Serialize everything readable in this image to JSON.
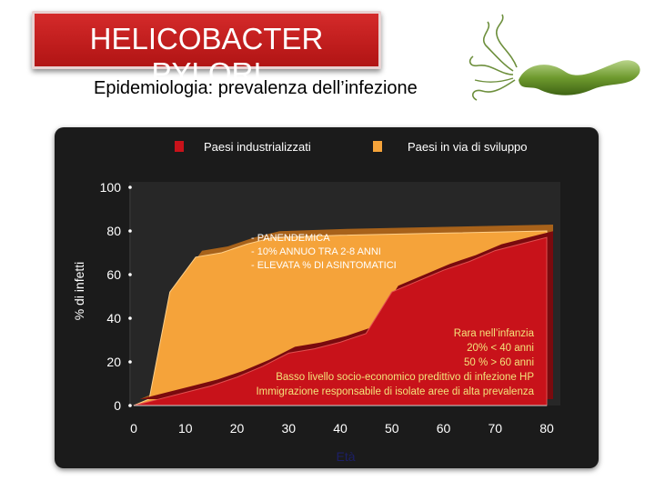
{
  "header": {
    "title": "HELICOBACTER PYLORI",
    "subtitle": "Epidemiologia: prevalenza dell’infezione"
  },
  "colors": {
    "title_bg": "#c41e1e",
    "industrialized": "#c8121a",
    "developing": "#f5a33a",
    "panel_bg": "#1b1b1b",
    "plot_bg": "#272727"
  },
  "chart_data": {
    "type": "area",
    "xlabel": "Età",
    "ylabel": "% di infetti",
    "xlim": [
      0,
      80
    ],
    "ylim": [
      0,
      100
    ],
    "x_ticks": [
      0,
      10,
      20,
      30,
      40,
      50,
      60,
      70,
      80
    ],
    "y_ticks": [
      0,
      20,
      40,
      60,
      80,
      100
    ],
    "grid": false,
    "legend_position": "top",
    "series": [
      {
        "name": "Paesi in via di sviluppo",
        "color": "#f5a33a",
        "points": [
          [
            0,
            0
          ],
          [
            3,
            3
          ],
          [
            7,
            52
          ],
          [
            12,
            68
          ],
          [
            17,
            70
          ],
          [
            22,
            74
          ],
          [
            27,
            77
          ],
          [
            40,
            78
          ],
          [
            60,
            79
          ],
          [
            80,
            80
          ]
        ]
      },
      {
        "name": "Paesi industrializzati",
        "color": "#c8121a",
        "points": [
          [
            0,
            0
          ],
          [
            5,
            3
          ],
          [
            10,
            6
          ],
          [
            15,
            9
          ],
          [
            20,
            13
          ],
          [
            25,
            18
          ],
          [
            30,
            24
          ],
          [
            35,
            26
          ],
          [
            40,
            29
          ],
          [
            45,
            33
          ],
          [
            50,
            52
          ],
          [
            55,
            57
          ],
          [
            60,
            62
          ],
          [
            65,
            66
          ],
          [
            70,
            71
          ],
          [
            75,
            74
          ],
          [
            80,
            77
          ]
        ]
      }
    ],
    "annotations": {
      "developing": [
        "- PANENDEMICA",
        "- 10% ANNUO TRA 2-8 ANNI",
        "- ELEVATA % DI ASINTOMATICI"
      ],
      "industrialized": [
        "Rara nell’infanzia",
        "20% < 40 anni",
        "50 % > 60 anni",
        "Basso livello socio-economico predittivo di infezione HP",
        "Immigrazione responsabile di isolate aree di alta prevalenza"
      ]
    }
  }
}
